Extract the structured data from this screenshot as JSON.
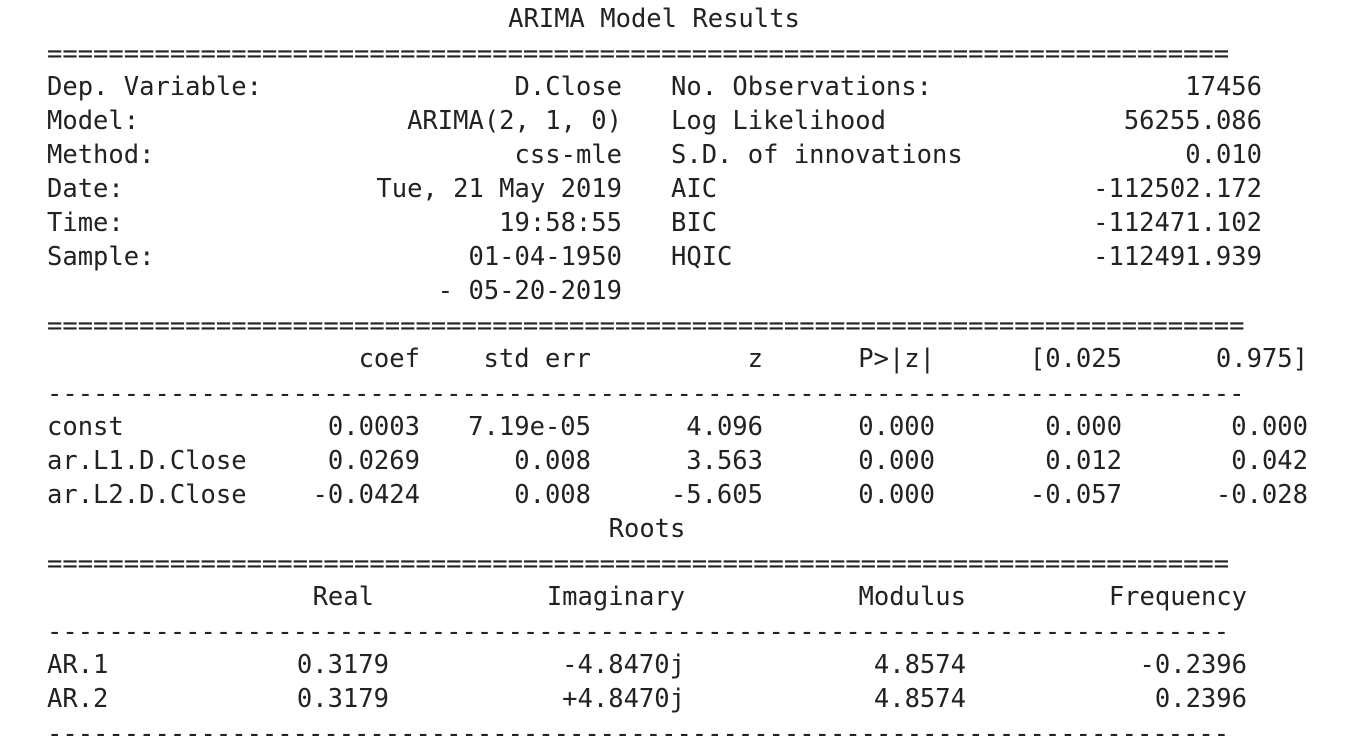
{
  "title": "ARIMA Model Results",
  "separators": {
    "double_a": "=============================================================================",
    "double_b": "==============================================================================",
    "single_b": "------------------------------------------------------------------------------",
    "double_c": "=============================================================================",
    "single_c": "-----------------------------------------------------------------------------"
  },
  "summary": [
    {
      "left_label": "Dep. Variable:",
      "left_value": "D.Close",
      "right_label": "No. Observations:",
      "right_value": "17456"
    },
    {
      "left_label": "Model:",
      "left_value": "ARIMA(2, 1, 0)",
      "right_label": "Log Likelihood",
      "right_value": "56255.086"
    },
    {
      "left_label": "Method:",
      "left_value": "css-mle",
      "right_label": "S.D. of innovations",
      "right_value": "0.010"
    },
    {
      "left_label": "Date:",
      "left_value": "Tue, 21 May 2019",
      "right_label": "AIC",
      "right_value": "-112502.172"
    },
    {
      "left_label": "Time:",
      "left_value": "19:58:55",
      "right_label": "BIC",
      "right_value": "-112471.102"
    },
    {
      "left_label": "Sample:",
      "left_value": "01-04-1950",
      "right_label": "HQIC",
      "right_value": "-112491.939"
    }
  ],
  "sample_end": "- 05-20-2019",
  "coef_table": {
    "headers": [
      "coef",
      "std err",
      "z",
      "P>|z|",
      "[0.025",
      "0.975]"
    ],
    "rows": [
      {
        "name": "const",
        "values": [
          "0.0003",
          "7.19e-05",
          "4.096",
          "0.000",
          "0.000",
          "0.000"
        ]
      },
      {
        "name": "ar.L1.D.Close",
        "values": [
          "0.0269",
          "0.008",
          "3.563",
          "0.000",
          "0.012",
          "0.042"
        ]
      },
      {
        "name": "ar.L2.D.Close",
        "values": [
          "-0.0424",
          "0.008",
          "-5.605",
          "0.000",
          "-0.057",
          "-0.028"
        ]
      }
    ]
  },
  "roots_title": "Roots",
  "roots_table": {
    "headers": [
      "Real",
      "Imaginary",
      "Modulus",
      "Frequency"
    ],
    "rows": [
      {
        "name": "AR.1",
        "values": [
          "0.3179",
          "-4.8470j",
          "4.8574",
          "-0.2396"
        ]
      },
      {
        "name": "AR.2",
        "values": [
          "0.3179",
          "+4.8470j",
          "4.8574",
          "0.2396"
        ]
      }
    ]
  }
}
